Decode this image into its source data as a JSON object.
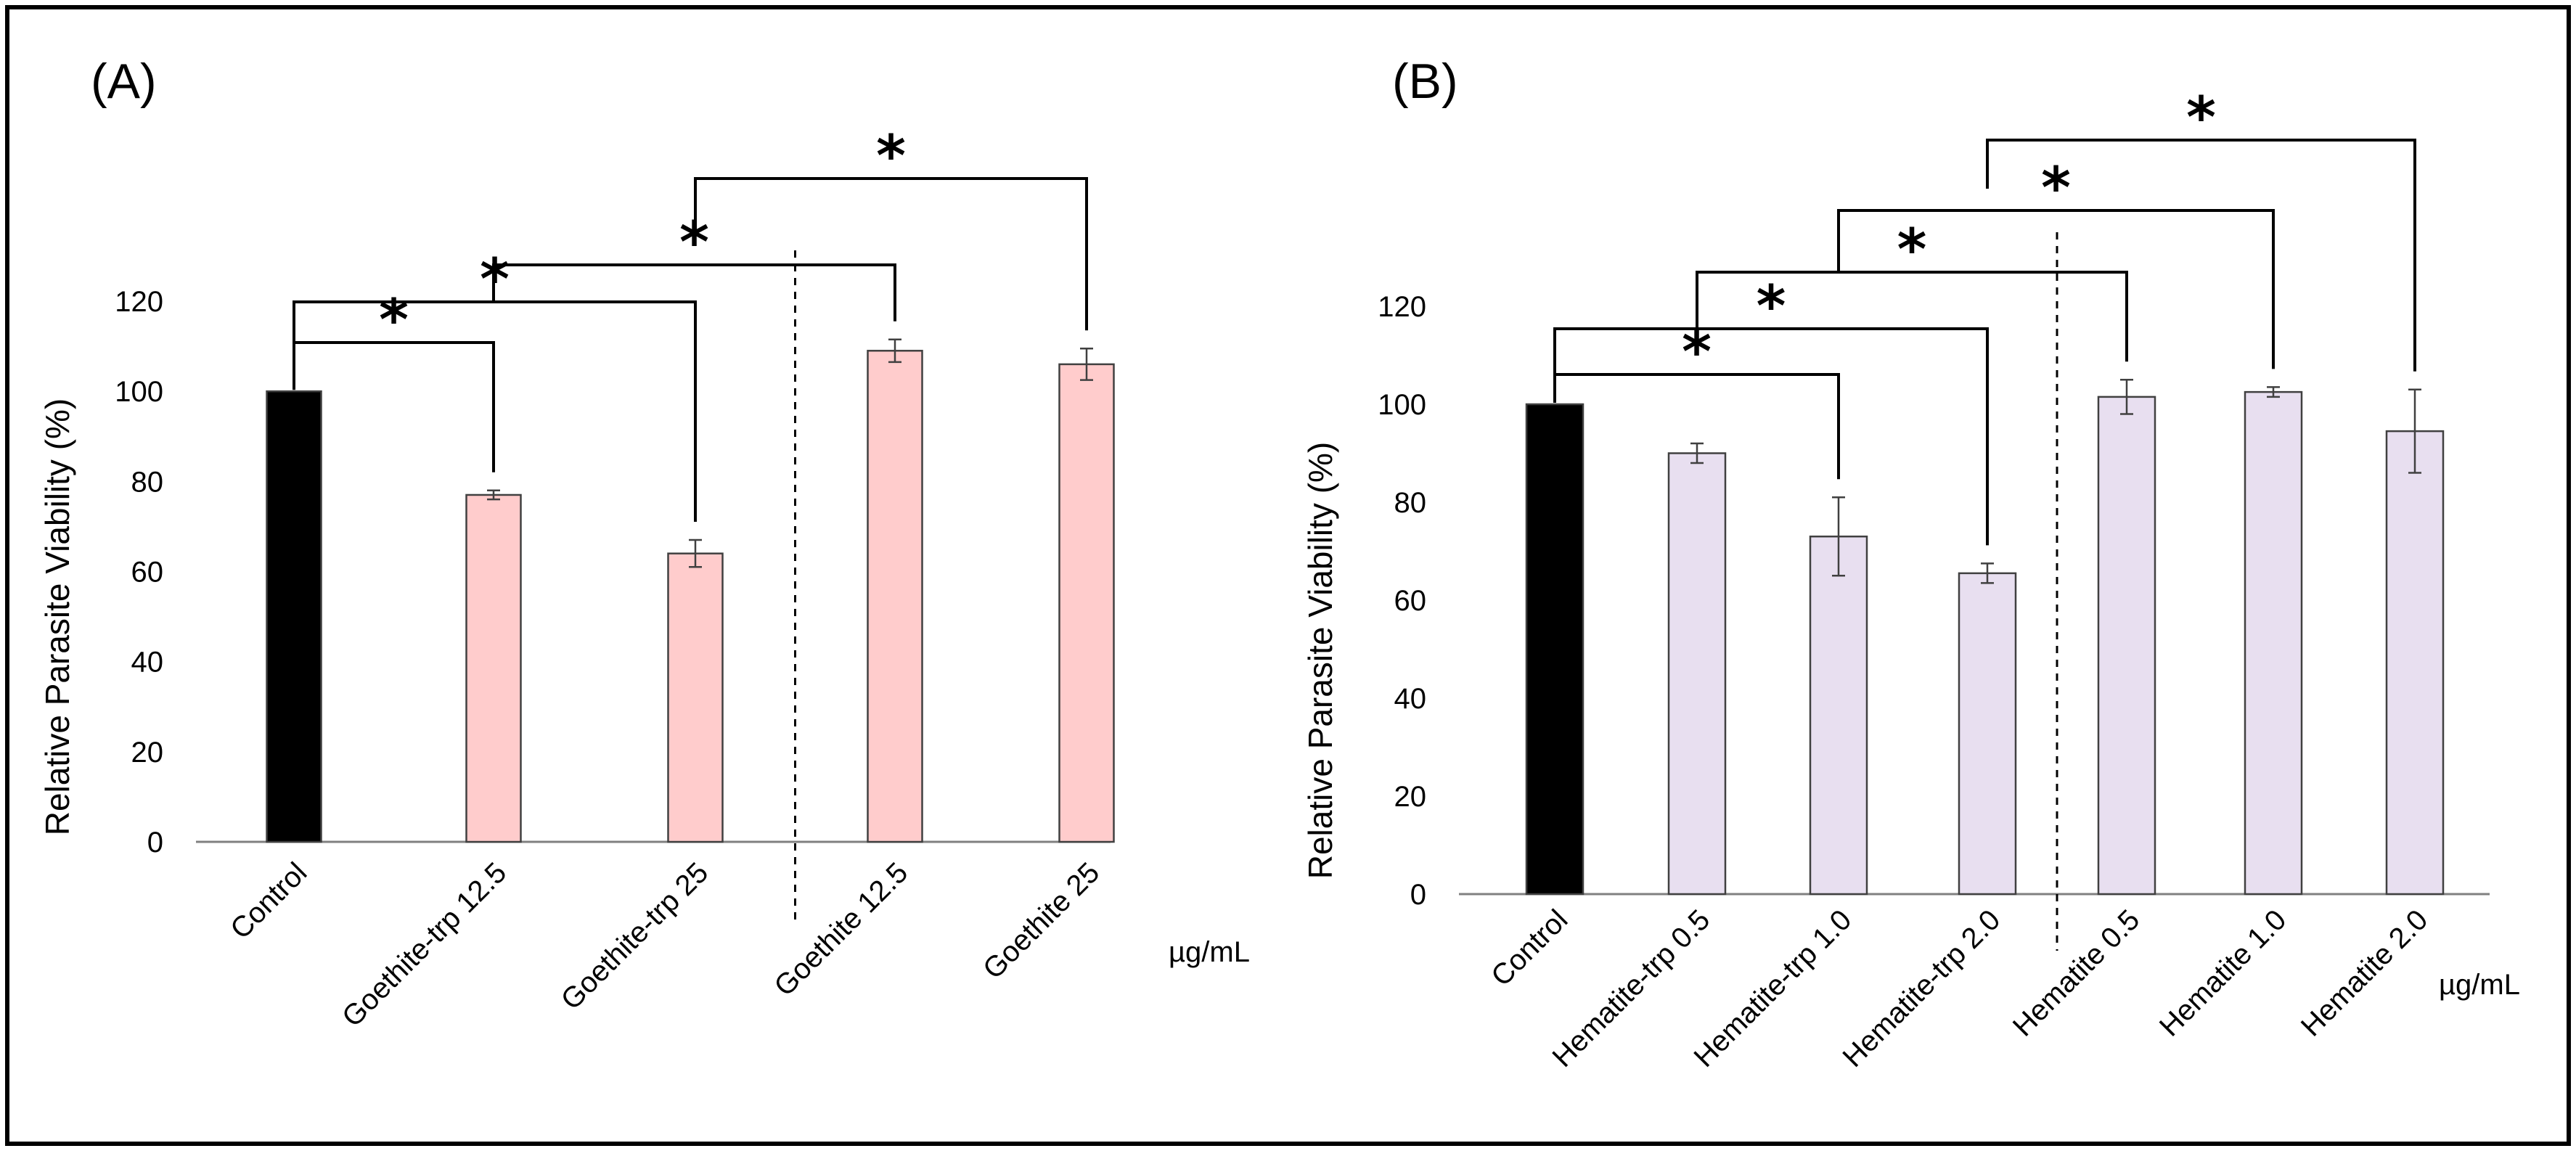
{
  "chart_data": [
    {
      "panel": "(A)",
      "type": "bar",
      "ylabel": "Relative Parasite Viability (%)",
      "unit_label": "µg/mL",
      "ylim": [
        0,
        120
      ],
      "yticks": [
        0,
        20,
        40,
        60,
        80,
        100,
        120
      ],
      "categories": [
        "Control",
        "Goethite-trp 12.5",
        "Goethite-trp 25",
        "Goethite 12.5",
        "Goethite 25"
      ],
      "values": [
        100,
        77,
        64,
        109,
        106
      ],
      "errors": [
        0,
        1,
        3,
        2.5,
        3.5
      ],
      "colors": [
        "#000000",
        "#ffcccc",
        "#ffcccc",
        "#ffcccc",
        "#ffcccc"
      ],
      "divider_after_index": 2,
      "significance": [
        {
          "from": 0,
          "to": 1,
          "label": "*"
        },
        {
          "from": 0,
          "to": 2,
          "label": "*"
        },
        {
          "from": 1,
          "to": 3,
          "label": "*"
        },
        {
          "from": 2,
          "to": 4,
          "label": "*"
        }
      ]
    },
    {
      "panel": "(B)",
      "type": "bar",
      "ylabel": "Relative Parasite Viability (%)",
      "unit_label": "µg/mL",
      "ylim": [
        0,
        120
      ],
      "yticks": [
        0,
        20,
        40,
        60,
        80,
        100,
        120
      ],
      "categories": [
        "Control",
        "Hematite-trp 0.5",
        "Hematite-trp 1.0",
        "Hematite-trp 2.0",
        "Hematite 0.5",
        "Hematite 1.0",
        "Hematite 2.0"
      ],
      "values": [
        100,
        90,
        73,
        65.5,
        101.5,
        102.5,
        94.5
      ],
      "errors": [
        0,
        2,
        8,
        2,
        3.5,
        1,
        8.5
      ],
      "colors": [
        "#000000",
        "#e8dff0",
        "#e8dff0",
        "#e8dff0",
        "#e8dff0",
        "#e8dff0",
        "#e8dff0"
      ],
      "divider_after_index": 3,
      "significance": [
        {
          "from": 0,
          "to": 2,
          "label": "*"
        },
        {
          "from": 0,
          "to": 3,
          "label": "*"
        },
        {
          "from": 1,
          "to": 4,
          "label": "*"
        },
        {
          "from": 2,
          "to": 5,
          "label": "*"
        },
        {
          "from": 3,
          "to": 6,
          "label": "*"
        }
      ]
    }
  ]
}
